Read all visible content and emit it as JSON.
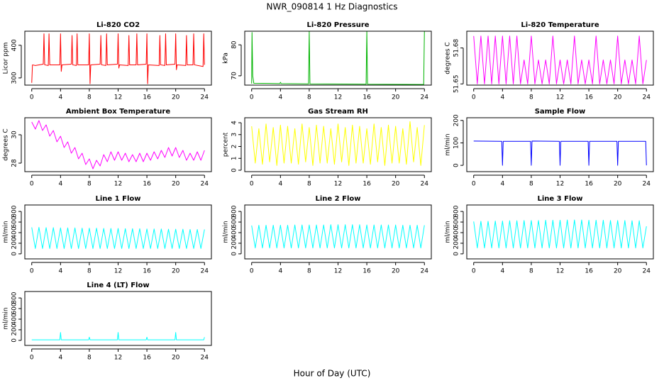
{
  "title": "NWR_090814  1 Hz Diagnostics",
  "xlabel": "Hour of Day (UTC)",
  "chart_data": [
    {
      "type": "line",
      "title": "Li-820 CO2",
      "ylabel": "Licor ppm",
      "color": "#ff0000",
      "xlim": [
        -0.96,
        24.96
      ],
      "xticks": [
        0,
        4,
        8,
        12,
        16,
        20,
        24
      ],
      "ylim": [
        278,
        443
      ],
      "yticks": [
        300,
        400
      ],
      "x": [
        0,
        0.1,
        0.5,
        1.6,
        1.7,
        1.8,
        2.3,
        2.4,
        2.5,
        3.9,
        4.0,
        4.1,
        4.2,
        5.5,
        5.6,
        5.7,
        6.2,
        6.3,
        6.4,
        7.9,
        8.0,
        8.1,
        8.2,
        9.5,
        9.6,
        9.7,
        10.3,
        10.4,
        10.5,
        11.9,
        12.0,
        12.1,
        12.2,
        13.4,
        13.5,
        13.6,
        14.5,
        14.6,
        14.7,
        15.9,
        16.0,
        16.1,
        16.2,
        17.7,
        17.8,
        17.9,
        18.5,
        18.6,
        18.7,
        19.9,
        20.0,
        20.1,
        20.2,
        21.4,
        21.5,
        21.6,
        22.4,
        22.5,
        22.6,
        23.8,
        23.9,
        24.0
      ],
      "values": [
        285,
        340,
        338,
        342,
        435,
        340,
        338,
        435,
        340,
        340,
        435,
        320,
        340,
        342,
        430,
        340,
        338,
        435,
        340,
        340,
        435,
        282,
        340,
        342,
        430,
        340,
        338,
        435,
        340,
        342,
        435,
        330,
        340,
        338,
        430,
        340,
        340,
        435,
        340,
        342,
        435,
        282,
        340,
        338,
        430,
        340,
        338,
        435,
        340,
        342,
        435,
        325,
        340,
        338,
        430,
        340,
        340,
        435,
        340,
        335,
        435,
        340
      ]
    },
    {
      "type": "line",
      "title": "Li-820 Pressure",
      "ylabel": "kPa",
      "color": "#00b400",
      "xlim": [
        -0.96,
        24.96
      ],
      "xticks": [
        0,
        4,
        8,
        12,
        16,
        20,
        24
      ],
      "ylim": [
        67,
        84.4
      ],
      "yticks": [
        70,
        80
      ],
      "x": [
        0,
        0.05,
        0.15,
        0.3,
        3.9,
        4.0,
        4.1,
        7.9,
        8.0,
        8.1,
        15.9,
        16.0,
        16.1,
        23.9,
        24.0
      ],
      "values": [
        67.5,
        84,
        70,
        67.6,
        67.5,
        67.9,
        67.5,
        67.4,
        84.3,
        67.4,
        67.3,
        84.3,
        67.3,
        67.2,
        84.3
      ]
    },
    {
      "type": "line",
      "title": "Li-820 Temperature",
      "ylabel": "degrees C",
      "color": "#ff00ff",
      "xlim": [
        -0.96,
        24.96
      ],
      "xticks": [
        0,
        4,
        8,
        12,
        16,
        20,
        24
      ],
      "ylim": [
        51.649,
        51.694
      ],
      "yticks": [
        51.65,
        51.68
      ],
      "x": [
        0,
        0.5,
        1,
        1.5,
        2,
        2.5,
        3,
        3.5,
        4,
        4.5,
        5,
        5.5,
        6,
        6.5,
        7,
        7.5,
        8,
        8.5,
        9,
        9.5,
        10,
        10.5,
        11,
        11.5,
        12,
        12.5,
        13,
        13.5,
        14,
        14.5,
        15,
        15.5,
        16,
        16.5,
        17,
        17.5,
        18,
        18.5,
        19,
        19.5,
        20,
        20.5,
        21,
        21.5,
        22,
        22.5,
        23,
        23.5,
        24
      ],
      "values": [
        51.69,
        51.65,
        51.69,
        51.65,
        51.69,
        51.65,
        51.69,
        51.65,
        51.69,
        51.65,
        51.69,
        51.65,
        51.69,
        51.65,
        51.67,
        51.65,
        51.69,
        51.65,
        51.67,
        51.65,
        51.67,
        51.65,
        51.69,
        51.65,
        51.67,
        51.65,
        51.67,
        51.65,
        51.69,
        51.65,
        51.67,
        51.65,
        51.67,
        51.65,
        51.69,
        51.65,
        51.67,
        51.65,
        51.67,
        51.65,
        51.69,
        51.65,
        51.67,
        51.65,
        51.67,
        51.65,
        51.69,
        51.65,
        51.67
      ]
    },
    {
      "type": "line",
      "title": "Ambient Box Temperature",
      "ylabel": "degrees C",
      "color": "#ff00ff",
      "xlim": [
        -0.96,
        24.96
      ],
      "xticks": [
        0,
        4,
        8,
        12,
        16,
        20,
        24
      ],
      "ylim": [
        27.4,
        31.2
      ],
      "yticks": [
        28,
        30
      ],
      "x": [
        0,
        0.5,
        1,
        1.5,
        2,
        2.5,
        3,
        3.5,
        4,
        4.5,
        5,
        5.5,
        6,
        6.5,
        7,
        7.5,
        8,
        8.5,
        9,
        9.5,
        10,
        10.5,
        11,
        11.5,
        12,
        12.5,
        13,
        13.5,
        14,
        14.5,
        15,
        15.5,
        16,
        16.5,
        17,
        17.5,
        18,
        18.5,
        19,
        19.5,
        20,
        20.5,
        21,
        21.5,
        22,
        22.5,
        23,
        23.5,
        24
      ],
      "values": [
        30.9,
        30.4,
        31.0,
        30.3,
        30.7,
        29.9,
        30.3,
        29.5,
        29.9,
        29.1,
        29.5,
        28.7,
        29.1,
        28.3,
        28.7,
        27.9,
        28.3,
        27.6,
        28.2,
        27.8,
        28.6,
        28.1,
        28.8,
        28.2,
        28.8,
        28.2,
        28.7,
        28.1,
        28.6,
        28.1,
        28.7,
        28.1,
        28.7,
        28.2,
        28.8,
        28.3,
        28.9,
        28.4,
        29.1,
        28.5,
        29.1,
        28.4,
        28.9,
        28.2,
        28.7,
        28.2,
        28.8,
        28.2,
        28.9
      ]
    },
    {
      "type": "line",
      "title": "Gas Stream RH",
      "ylabel": "percent",
      "color": "#ffff00",
      "xlim": [
        -0.96,
        24.96
      ],
      "xticks": [
        0,
        4,
        8,
        12,
        16,
        20,
        24
      ],
      "ylim": [
        -0.12,
        4.42
      ],
      "yticks": [
        0,
        1,
        2,
        3,
        4
      ],
      "x": [
        0,
        0.5,
        1,
        1.5,
        2,
        2.5,
        3,
        3.5,
        4,
        4.5,
        5,
        5.5,
        6,
        6.5,
        7,
        7.5,
        8,
        8.5,
        9,
        9.5,
        10,
        10.5,
        11,
        11.5,
        12,
        12.5,
        13,
        13.5,
        14,
        14.5,
        15,
        15.5,
        16,
        16.5,
        17,
        17.5,
        18,
        18.5,
        19,
        19.5,
        20,
        20.5,
        21,
        21.5,
        22,
        22.5,
        23,
        23.5,
        24
      ],
      "values": [
        3.7,
        0.6,
        3.5,
        0.5,
        3.9,
        0.7,
        3.6,
        0.4,
        3.8,
        0.6,
        3.7,
        0.6,
        3.5,
        0.5,
        3.9,
        0.7,
        3.6,
        0.4,
        3.8,
        0.6,
        3.7,
        0.6,
        3.5,
        0.5,
        3.9,
        0.7,
        3.6,
        0.4,
        3.8,
        0.6,
        3.7,
        0.6,
        3.5,
        0.5,
        3.9,
        0.7,
        3.6,
        0.4,
        3.8,
        0.6,
        3.7,
        0.6,
        3.5,
        0.5,
        4.1,
        0.7,
        3.6,
        0.4,
        3.8
      ]
    },
    {
      "type": "line",
      "title": "Sample Flow",
      "ylabel": "ml/min",
      "color": "#0000ff",
      "xlim": [
        -0.96,
        24.96
      ],
      "xticks": [
        0,
        4,
        8,
        12,
        16,
        20,
        24
      ],
      "ylim": [
        -28,
        212
      ],
      "yticks": [
        0,
        100,
        200
      ],
      "x": [
        0,
        3.9,
        4.0,
        4.1,
        7.9,
        8.0,
        8.1,
        11.9,
        12.0,
        12.1,
        15.9,
        16.0,
        16.1,
        19.9,
        20.0,
        20.1,
        23.9,
        24.0
      ],
      "values": [
        108,
        107,
        0,
        107,
        107,
        0,
        108,
        107,
        0,
        107,
        107,
        0,
        107,
        107,
        0,
        107,
        107,
        0
      ]
    },
    {
      "type": "line",
      "title": "Line 1 Flow",
      "ylabel": "ml/min",
      "color": "#00ffff",
      "xlim": [
        -0.96,
        24.96
      ],
      "xticks": [
        0,
        4,
        8,
        12,
        16,
        20,
        24
      ],
      "ylim": [
        -95,
        922
      ],
      "yticks": [
        0,
        200,
        400,
        600,
        800
      ],
      "x": [
        0,
        0.5,
        1,
        1.5,
        2,
        2.5,
        3,
        3.5,
        4,
        4.5,
        5,
        5.5,
        6,
        6.5,
        7,
        7.5,
        8,
        8.5,
        9,
        9.5,
        10,
        10.5,
        11,
        11.5,
        12,
        12.5,
        13,
        13.5,
        14,
        14.5,
        15,
        15.5,
        16,
        16.5,
        17,
        17.5,
        18,
        18.5,
        19,
        19.5,
        20,
        20.5,
        21,
        21.5,
        22,
        22.5,
        23,
        23.5,
        24
      ],
      "values": [
        500,
        100,
        500,
        100,
        495,
        100,
        495,
        100,
        490,
        100,
        490,
        100,
        490,
        100,
        485,
        100,
        485,
        100,
        485,
        100,
        480,
        100,
        480,
        100,
        480,
        100,
        475,
        100,
        475,
        100,
        475,
        100,
        470,
        100,
        470,
        100,
        470,
        100,
        465,
        100,
        465,
        100,
        465,
        100,
        460,
        100,
        460,
        100,
        460
      ]
    },
    {
      "type": "line",
      "title": "Line 2 Flow",
      "ylabel": "ml/min",
      "color": "#00ffff",
      "xlim": [
        -0.96,
        24.96
      ],
      "xticks": [
        0,
        4,
        8,
        12,
        16,
        20,
        24
      ],
      "ylim": [
        -95,
        922
      ],
      "yticks": [
        0,
        200,
        400,
        600,
        800
      ],
      "x": [
        0,
        0.5,
        1,
        1.5,
        2,
        2.5,
        3,
        3.5,
        4,
        4.5,
        5,
        5.5,
        6,
        6.5,
        7,
        7.5,
        8,
        8.5,
        9,
        9.5,
        10,
        10.5,
        11,
        11.5,
        12,
        12.5,
        13,
        13.5,
        14,
        14.5,
        15,
        15.5,
        16,
        16.5,
        17,
        17.5,
        18,
        18.5,
        19,
        19.5,
        20,
        20.5,
        21,
        21.5,
        22,
        22.5,
        23,
        23.5,
        24
      ],
      "values": [
        535,
        110,
        540,
        110,
        540,
        110,
        540,
        110,
        540,
        110,
        540,
        110,
        545,
        110,
        545,
        110,
        545,
        110,
        545,
        110,
        545,
        110,
        550,
        110,
        550,
        110,
        550,
        110,
        550,
        110,
        550,
        110,
        545,
        110,
        545,
        110,
        545,
        110,
        545,
        110,
        545,
        110,
        540,
        110,
        540,
        110,
        540,
        110,
        540
      ]
    },
    {
      "type": "line",
      "title": "Line 3 Flow",
      "ylabel": "ml/min",
      "color": "#00ffff",
      "xlim": [
        -0.96,
        24.96
      ],
      "xticks": [
        0,
        4,
        8,
        12,
        16,
        20,
        24
      ],
      "ylim": [
        -95,
        922
      ],
      "yticks": [
        0,
        200,
        400,
        600,
        800
      ],
      "x": [
        0,
        0.5,
        1,
        1.5,
        2,
        2.5,
        3,
        3.5,
        4,
        4.5,
        5,
        5.5,
        6,
        6.5,
        7,
        7.5,
        8,
        8.5,
        9,
        9.5,
        10,
        10.5,
        11,
        11.5,
        12,
        12.5,
        13,
        13.5,
        14,
        14.5,
        15,
        15.5,
        16,
        16.5,
        17,
        17.5,
        18,
        18.5,
        19,
        19.5,
        20,
        20.5,
        21,
        21.5,
        22,
        22.5,
        23,
        23.5,
        24
      ],
      "values": [
        610,
        110,
        615,
        110,
        615,
        110,
        620,
        110,
        620,
        110,
        625,
        110,
        625,
        110,
        630,
        110,
        630,
        110,
        630,
        110,
        635,
        110,
        635,
        110,
        635,
        110,
        640,
        110,
        640,
        110,
        640,
        110,
        635,
        110,
        635,
        110,
        635,
        110,
        630,
        110,
        630,
        110,
        630,
        110,
        625,
        110,
        625,
        110,
        520
      ]
    },
    {
      "type": "line",
      "title": "Line 4 (LT) Flow",
      "ylabel": "ml/min",
      "color": "#00ffff",
      "xlim": [
        -0.96,
        24.96
      ],
      "xticks": [
        0,
        4,
        8,
        12,
        16,
        20,
        24
      ],
      "ylim": [
        -95,
        922
      ],
      "yticks": [
        0,
        200,
        400,
        600,
        800
      ],
      "x": [
        0,
        3.9,
        4.0,
        4.1,
        7.9,
        8.0,
        8.1,
        11.9,
        12.0,
        12.1,
        15.9,
        16.0,
        16.1,
        19.9,
        20.0,
        20.1,
        23.9,
        24.0
      ],
      "values": [
        10,
        10,
        150,
        10,
        10,
        60,
        10,
        10,
        150,
        10,
        10,
        60,
        10,
        10,
        150,
        10,
        10,
        60
      ]
    }
  ]
}
